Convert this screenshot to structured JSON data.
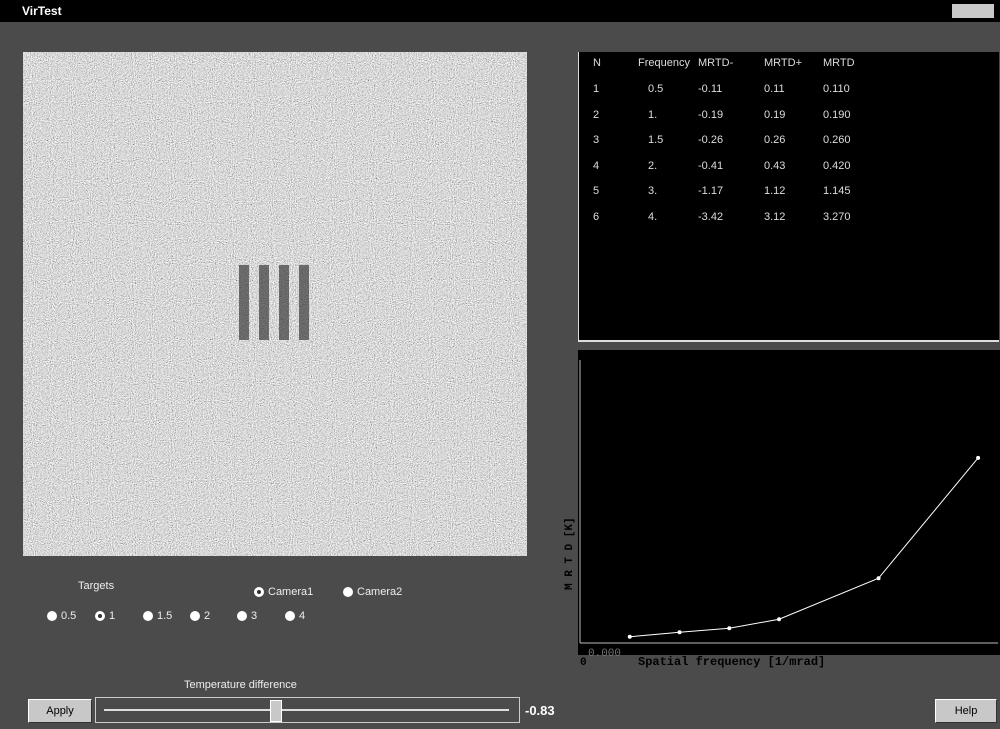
{
  "window": {
    "title": "VirTest"
  },
  "table": {
    "columns": [
      "N",
      "Frequency",
      "MRTD-",
      "MRTD+",
      "MRTD"
    ],
    "rows": [
      [
        "1",
        "0.5",
        "-0.11",
        "0.11",
        "0.110"
      ],
      [
        "2",
        "1.",
        "-0.19",
        "0.19",
        "0.190"
      ],
      [
        "3",
        "1.5",
        "-0.26",
        "0.26",
        "0.260"
      ],
      [
        "4",
        "2.",
        "-0.41",
        "0.43",
        "0.420"
      ],
      [
        "5",
        "3.",
        "-1.17",
        "1.12",
        "1.145"
      ],
      [
        "6",
        "4.",
        "-3.42",
        "3.12",
        "3.270"
      ]
    ]
  },
  "chart_data": {
    "type": "line",
    "x_label": "Spatial frequency  [1/mrad]",
    "y_label": "M R T D   [K]",
    "x": [
      0.5,
      1,
      1.5,
      2,
      3,
      4
    ],
    "series": [
      {
        "color": "#ffffff",
        "values": [
          0.11,
          0.19,
          0.26,
          0.42,
          1.145,
          3.27
        ]
      }
    ],
    "xlim": [
      0,
      4.2
    ],
    "ylim": [
      0,
      5
    ],
    "xticks": [
      {
        "value": 0,
        "label": "0"
      }
    ],
    "yticks": [
      {
        "value": 0,
        "label": "0.000"
      }
    ]
  },
  "controls": {
    "targets_label": "Targets",
    "targets": [
      "0.5",
      "1",
      "1.5",
      "2",
      "3",
      "4"
    ],
    "selected_target": 1,
    "cameras": [
      "Camera1",
      "Camera2"
    ],
    "selected_camera": 0,
    "slider_label": "Temperature difference",
    "slider_value": "-0.83",
    "apply": "Apply",
    "help": "Help"
  }
}
